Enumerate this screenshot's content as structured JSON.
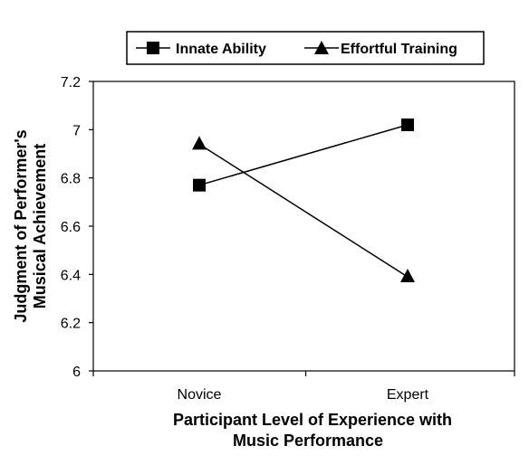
{
  "chart_data": {
    "type": "line",
    "categories": [
      "Novice",
      "Expert"
    ],
    "series": [
      {
        "name": "Innate Ability",
        "values": [
          6.77,
          7.02
        ],
        "marker": "square"
      },
      {
        "name": "Effortful Training",
        "values": [
          6.94,
          6.39
        ],
        "marker": "triangle"
      }
    ],
    "ylabel": [
      "Judgment of Performer's",
      "Musical Achievement"
    ],
    "xlabel": [
      "Participant Level of Experience with",
      "Music Performance"
    ],
    "ylim": [
      6,
      7.2
    ],
    "yticks": [
      "6",
      "6.2",
      "6.4",
      "6.6",
      "6.8",
      "7",
      "7.2"
    ],
    "grid": false,
    "legend_position": "top",
    "colors": {
      "line": "#000000",
      "marker": "#000000"
    }
  }
}
